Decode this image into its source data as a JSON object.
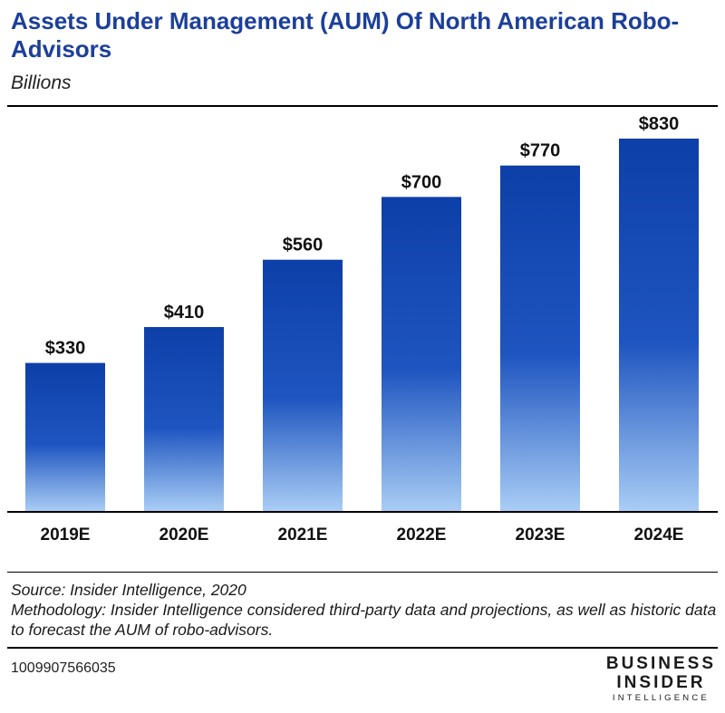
{
  "header": {
    "title": "Assets Under Management (AUM) Of North American Robo-Advisors",
    "subtitle": "Billions"
  },
  "chart_data": {
    "type": "bar",
    "categories": [
      "2019E",
      "2020E",
      "2021E",
      "2022E",
      "2023E",
      "2024E"
    ],
    "values": [
      330,
      410,
      560,
      700,
      770,
      830
    ],
    "value_labels": [
      "$330",
      "$410",
      "$560",
      "$700",
      "$770",
      "$830"
    ],
    "title": "Assets Under Management (AUM) Of North American Robo-Advisors",
    "subtitle": "Billions",
    "xlabel": "",
    "ylabel": "",
    "ylim": [
      0,
      830
    ],
    "grid": false,
    "legend": "none",
    "colors": {
      "bar_top": "#0d3fa8",
      "bar_mid": "#1f55c0",
      "bar_bottom": "#a9cdf5"
    }
  },
  "footer": {
    "source": "Source: Insider Intelligence, 2020",
    "methodology": "Methodology: Insider Intelligence considered third-party data and projections, as well as historic data to forecast the AUM of robo-advisors.",
    "chart_id": "1009907566035",
    "logo": {
      "line1": "BUSINESS",
      "line2": "INSIDER",
      "line3": "INTELLIGENCE"
    }
  }
}
